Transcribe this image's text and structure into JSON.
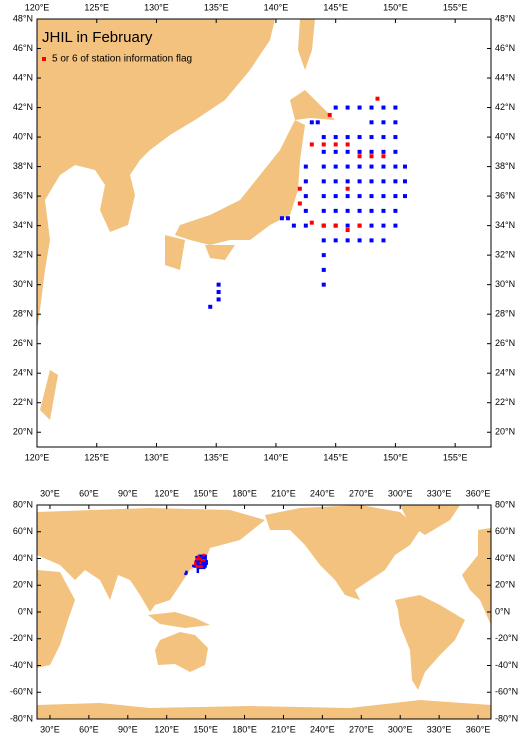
{
  "chart_data": [
    {
      "type": "scatter",
      "title": "JHIL in February",
      "legend": "upper left",
      "xlim": [
        120,
        158
      ],
      "ylim": [
        19,
        48
      ],
      "xticks": [
        {
          "value": 120,
          "label": "120°E"
        },
        {
          "value": 125,
          "label": "125°E"
        },
        {
          "value": 130,
          "label": "130°E"
        },
        {
          "value": 135,
          "label": "135°E"
        },
        {
          "value": 140,
          "label": "140°E"
        },
        {
          "value": 145,
          "label": "145°E"
        },
        {
          "value": 150,
          "label": "150°E"
        },
        {
          "value": 155,
          "label": "155°E"
        }
      ],
      "yticks": [
        {
          "value": 20,
          "label": "20°N"
        },
        {
          "value": 22,
          "label": "22°N"
        },
        {
          "value": 24,
          "label": "24°N"
        },
        {
          "value": 26,
          "label": "26°N"
        },
        {
          "value": 28,
          "label": "28°N"
        },
        {
          "value": 30,
          "label": "30°N"
        },
        {
          "value": 32,
          "label": "32°N"
        },
        {
          "value": 34,
          "label": "34°N"
        },
        {
          "value": 36,
          "label": "36°N"
        },
        {
          "value": 38,
          "label": "38°N"
        },
        {
          "value": 40,
          "label": "40°N"
        },
        {
          "value": 42,
          "label": "42°N"
        },
        {
          "value": 44,
          "label": "44°N"
        },
        {
          "value": 46,
          "label": "46°N"
        },
        {
          "value": 48,
          "label": "48°N"
        }
      ],
      "series": [
        {
          "color": "#0000ff",
          "x": [
            144,
            144,
            144,
            144,
            144,
            144,
            144,
            144,
            144,
            144,
            144,
            146,
            146,
            146,
            146,
            146,
            146,
            146,
            146,
            147,
            147,
            147,
            147,
            147,
            147,
            147,
            147,
            148,
            148,
            148,
            148,
            148,
            148,
            148,
            148,
            148,
            149,
            149,
            149,
            149,
            149,
            149,
            149,
            149,
            149,
            149,
            150,
            150,
            150,
            150,
            150,
            150,
            150,
            150,
            150,
            142.5,
            142.5,
            142.5,
            142.5,
            142.5,
            145,
            145,
            145,
            145,
            145,
            145,
            145,
            145,
            150.8,
            150.8,
            150.8,
            145,
            146,
            147,
            148,
            143,
            143.5,
            135.2,
            135.2,
            135.2,
            134.5,
            141,
            140.5,
            141.5
          ],
          "y": [
            30,
            31,
            32,
            33,
            34,
            35,
            36,
            37,
            38,
            39,
            40,
            33,
            34,
            35,
            36,
            37,
            38,
            39,
            40,
            33,
            34,
            35,
            36,
            37,
            38,
            39,
            40,
            33,
            34,
            35,
            36,
            37,
            38,
            39,
            40,
            41,
            33,
            34,
            35,
            36,
            37,
            38,
            39,
            40,
            41,
            42,
            34,
            35,
            36,
            37,
            38,
            39,
            40,
            41,
            42,
            34,
            35,
            36,
            37,
            38,
            33,
            34,
            35,
            36,
            37,
            38,
            39,
            40,
            36,
            37,
            38,
            42,
            42,
            42,
            42,
            41,
            41,
            29,
            29.5,
            30,
            28.5,
            34.5,
            34.5,
            34
          ]
        },
        {
          "name": "5 or 6 of station information flag",
          "color": "#ff0000",
          "x": [
            143,
            144,
            145,
            146,
            147,
            148,
            149,
            142,
            142,
            143,
            144,
            145,
            146,
            147,
            146,
            148.5,
            144.5
          ],
          "y": [
            39.5,
            39.5,
            39.5,
            39.5,
            38.7,
            38.7,
            38.7,
            36.5,
            35.5,
            34.2,
            34,
            34,
            33.7,
            34,
            36.5,
            42.6,
            41.5
          ]
        }
      ]
    },
    {
      "type": "map",
      "xlim": [
        20,
        370
      ],
      "ylim": [
        -80,
        80
      ],
      "xticks": [
        {
          "value": 30,
          "label": "30°E"
        },
        {
          "value": 60,
          "label": "60°E"
        },
        {
          "value": 90,
          "label": "90°E"
        },
        {
          "value": 120,
          "label": "120°E"
        },
        {
          "value": 150,
          "label": "150°E"
        },
        {
          "value": 180,
          "label": "180°E"
        },
        {
          "value": 210,
          "label": "210°E"
        },
        {
          "value": 240,
          "label": "240°E"
        },
        {
          "value": 270,
          "label": "270°E"
        },
        {
          "value": 300,
          "label": "300°E"
        },
        {
          "value": 330,
          "label": "330°E"
        },
        {
          "value": 360,
          "label": "360°E"
        }
      ],
      "yticks": [
        {
          "value": -80,
          "label": "-80°N"
        },
        {
          "value": -60,
          "label": "-60°N"
        },
        {
          "value": -40,
          "label": "-40°N"
        },
        {
          "value": -20,
          "label": "-20°N"
        },
        {
          "value": 0,
          "label": "0°N"
        },
        {
          "value": 20,
          "label": "20°N"
        },
        {
          "value": 40,
          "label": "40°N"
        },
        {
          "value": 60,
          "label": "60°N"
        },
        {
          "value": 80,
          "label": "80°N"
        }
      ]
    }
  ]
}
